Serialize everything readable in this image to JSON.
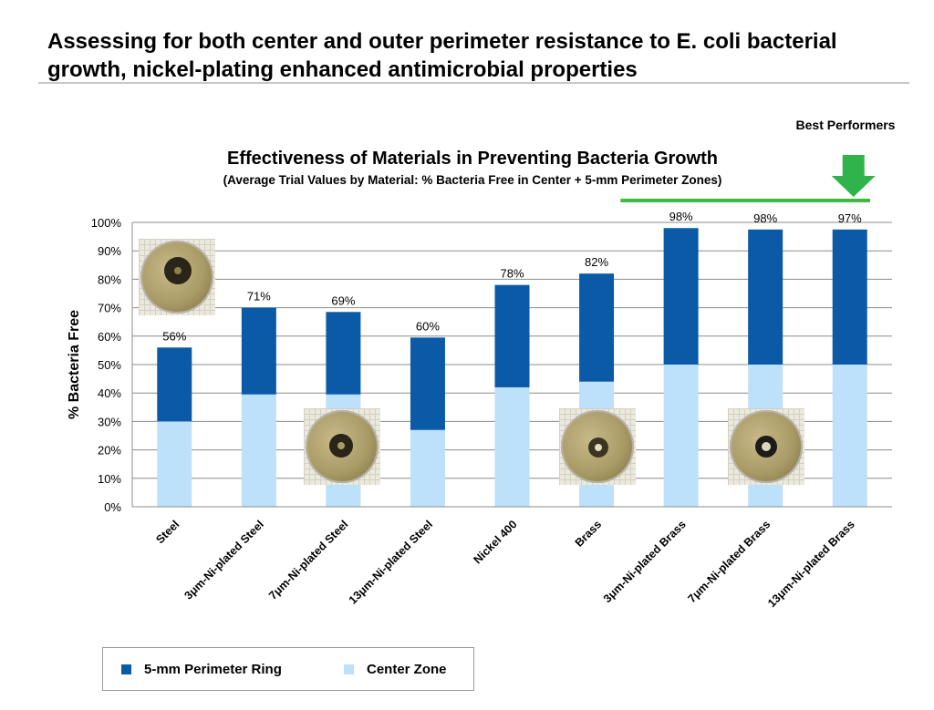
{
  "slide_title": "Assessing for both center and outer perimeter resistance to E. coli bacterial growth, nickel-plating enhanced antimicrobial properties",
  "callout": {
    "label": "Best Performers",
    "colors": {
      "arrow": "#2fb34a",
      "line": "#3dbb3d"
    },
    "marker": "down-arrow-icon"
  },
  "chart_data": {
    "type": "bar",
    "stacked": true,
    "title": "Effectiveness of Materials in Preventing Bacteria Growth",
    "subtitle": "(Average Trial Values by Material: % Bacteria Free in Center + 5-mm Perimeter Zones)",
    "ylabel": "% Bacteria Free",
    "xlabel": "",
    "ylim": [
      0,
      100
    ],
    "yticks": [
      "0%",
      "10%",
      "20%",
      "30%",
      "40%",
      "50%",
      "60%",
      "70%",
      "80%",
      "90%",
      "100%"
    ],
    "grid": true,
    "legend_position": "bottom-left",
    "categories": [
      "Steel",
      "3μm-Ni-plated Steel",
      "7μm-Ni-plated Steel",
      "13μm-Ni-plated Steel",
      "Nickel 400",
      "Brass",
      "3μm-Ni-plated Brass",
      "7μm-Ni-plated Brass",
      "13μm-Ni-plated Brass"
    ],
    "series": [
      {
        "name": "Center Zone",
        "color": "#bde0fb",
        "values": [
          30,
          39.5,
          39.5,
          27,
          42,
          44,
          50,
          50,
          50
        ]
      },
      {
        "name": "5-mm Perimeter Ring",
        "color": "#0b5aa8",
        "values": [
          26,
          30.5,
          29,
          32.5,
          36,
          38,
          48,
          47.5,
          47.5
        ]
      }
    ],
    "data_labels": [
      "56%",
      "71%",
      "69%",
      "60%",
      "78%",
      "82%",
      "98%",
      "98%",
      "97%"
    ]
  },
  "legend": [
    {
      "label": "5-mm Perimeter Ring",
      "color": "#0b5aa8"
    },
    {
      "label": "Center Zone",
      "color": "#bde0fb"
    }
  ]
}
